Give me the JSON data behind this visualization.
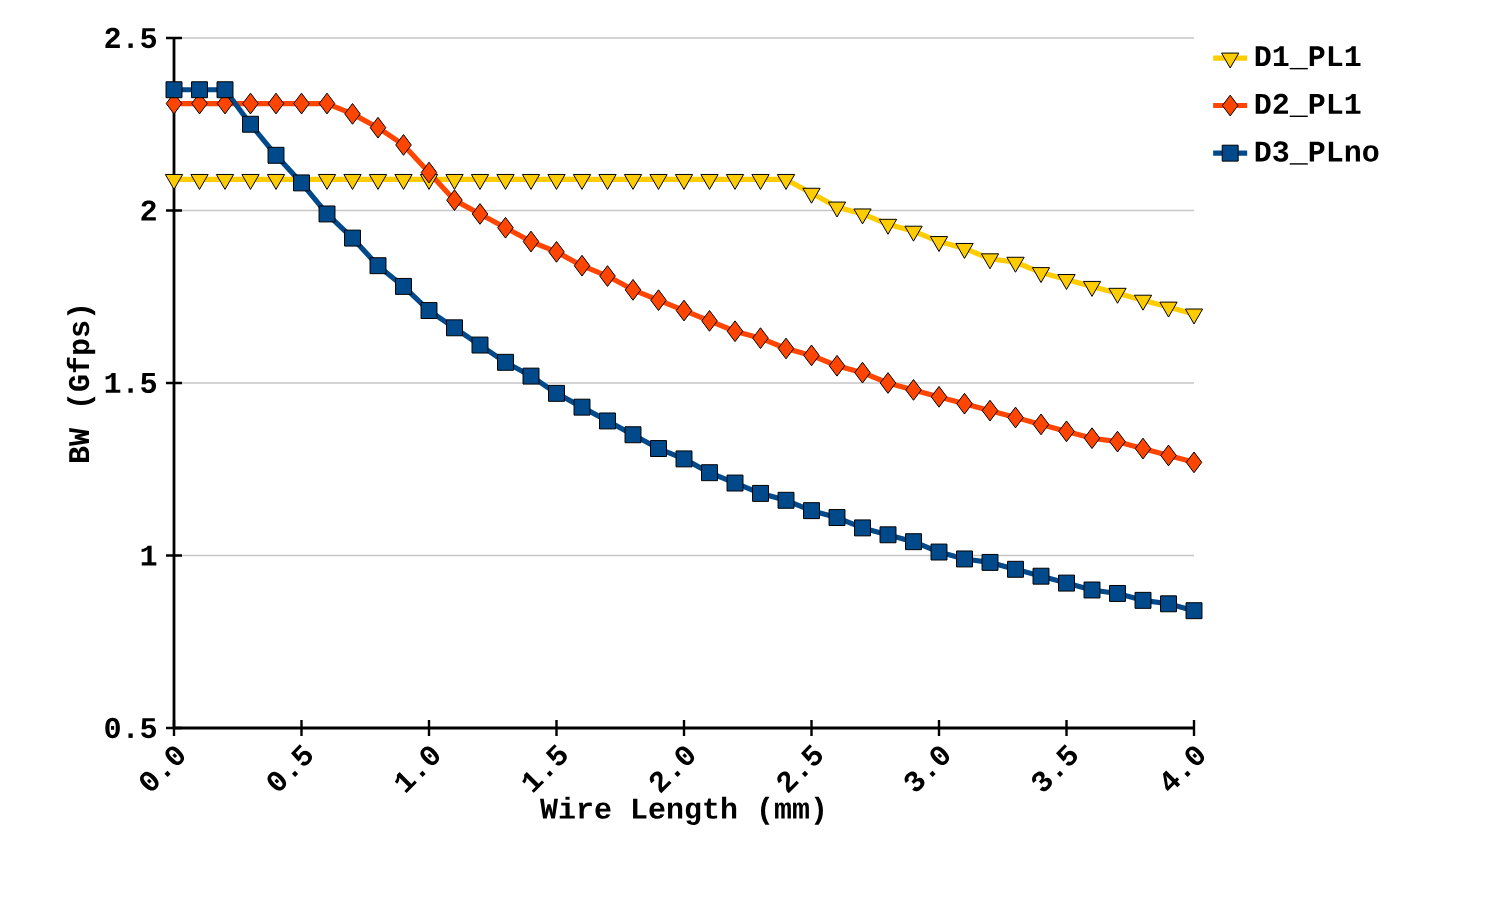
{
  "chart_data": {
    "type": "line",
    "xlabel": "Wire Length (mm)",
    "ylabel": "BW (Gfps)",
    "x": [
      0.0,
      0.1,
      0.2,
      0.3,
      0.4,
      0.5,
      0.6,
      0.7,
      0.8,
      0.9,
      1.0,
      1.1,
      1.2,
      1.3,
      1.4,
      1.5,
      1.6,
      1.7,
      1.8,
      1.9,
      2.0,
      2.1,
      2.2,
      2.3,
      2.4,
      2.5,
      2.6,
      2.7,
      2.8,
      2.9,
      3.0,
      3.1,
      3.2,
      3.3,
      3.4,
      3.5,
      3.6,
      3.7,
      3.8,
      3.9,
      4.0
    ],
    "series": [
      {
        "name": "D1_PL1",
        "color": "#ffcc00",
        "marker": "triangle",
        "values": [
          2.09,
          2.09,
          2.09,
          2.09,
          2.09,
          null,
          2.09,
          2.09,
          2.09,
          2.09,
          2.09,
          2.09,
          2.09,
          2.09,
          2.09,
          2.09,
          2.09,
          2.09,
          2.09,
          2.09,
          2.09,
          2.09,
          2.09,
          2.09,
          2.09,
          2.05,
          2.01,
          1.99,
          1.96,
          1.94,
          1.91,
          1.89,
          1.86,
          1.85,
          1.82,
          1.8,
          1.78,
          1.76,
          1.74,
          1.72,
          1.7
        ]
      },
      {
        "name": "D2_PL1",
        "color": "#ff4500",
        "marker": "diamond",
        "values": [
          2.31,
          2.31,
          2.31,
          2.31,
          2.31,
          2.31,
          2.31,
          2.28,
          2.24,
          2.19,
          2.11,
          2.03,
          1.99,
          1.95,
          1.91,
          1.88,
          1.84,
          1.81,
          1.77,
          1.74,
          1.71,
          1.68,
          1.65,
          1.63,
          1.6,
          1.58,
          1.55,
          1.53,
          1.5,
          1.48,
          1.46,
          1.44,
          1.42,
          1.4,
          1.38,
          1.36,
          1.34,
          1.33,
          1.31,
          1.29,
          1.27
        ]
      },
      {
        "name": "D3_PLno",
        "color": "#004a8c",
        "marker": "square",
        "values": [
          2.35,
          2.35,
          2.35,
          2.25,
          2.16,
          2.08,
          1.99,
          1.92,
          1.84,
          1.78,
          1.71,
          1.66,
          1.61,
          1.56,
          1.52,
          1.47,
          1.43,
          1.39,
          1.35,
          1.31,
          1.28,
          1.24,
          1.21,
          1.18,
          1.16,
          1.13,
          1.11,
          1.08,
          1.06,
          1.04,
          1.01,
          0.99,
          0.98,
          0.96,
          0.94,
          0.92,
          0.9,
          0.89,
          0.87,
          0.86,
          0.84
        ]
      }
    ],
    "xlim": [
      0,
      4
    ],
    "xticks": [
      {
        "value": 0,
        "label": "0.0"
      },
      {
        "value": 0.5,
        "label": "0.5"
      },
      {
        "value": 1,
        "label": "1.0"
      },
      {
        "value": 1.5,
        "label": "1.5"
      },
      {
        "value": 2,
        "label": "2.0"
      },
      {
        "value": 2.5,
        "label": "2.5"
      },
      {
        "value": 3,
        "label": "3.0"
      },
      {
        "value": 3.5,
        "label": "3.5"
      },
      {
        "value": 4,
        "label": "4.0"
      }
    ],
    "ylim": [
      0.5,
      2.5
    ],
    "yticks": [
      0.5,
      1,
      1.5,
      2,
      2.5
    ],
    "grid": "y",
    "legend": "top right",
    "line_style": "solid"
  }
}
